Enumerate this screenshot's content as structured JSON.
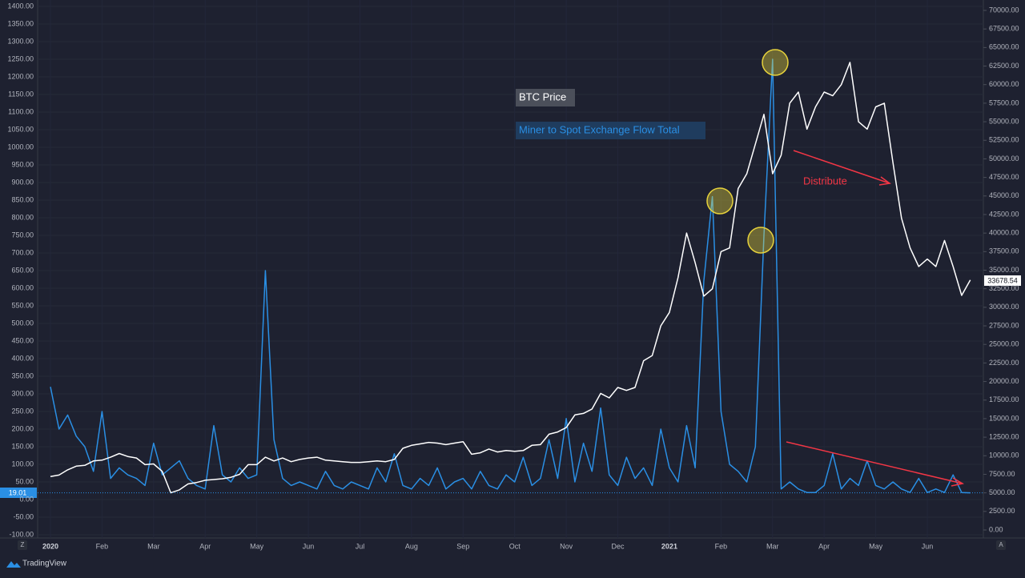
{
  "chart_data": {
    "type": "line",
    "categories": [
      "2020",
      null,
      null,
      null,
      null,
      null,
      "Feb",
      null,
      null,
      null,
      null,
      null,
      "Mar",
      null,
      null,
      null,
      null,
      null,
      "Apr",
      null,
      null,
      null,
      null,
      null,
      "May",
      null,
      null,
      null,
      null,
      null,
      "Jun",
      null,
      null,
      null,
      null,
      null,
      "Jul",
      null,
      null,
      null,
      null,
      null,
      "Aug",
      null,
      null,
      null,
      null,
      null,
      "Sep",
      null,
      null,
      null,
      null,
      null,
      "Oct",
      null,
      null,
      null,
      null,
      null,
      "Nov",
      null,
      null,
      null,
      null,
      null,
      "Dec",
      null,
      null,
      null,
      null,
      null,
      "2021",
      null,
      null,
      null,
      null,
      null,
      "Feb",
      null,
      null,
      null,
      null,
      null,
      "Mar",
      null,
      null,
      null,
      null,
      null,
      "Apr",
      null,
      null,
      null,
      null,
      null,
      "May",
      null,
      null,
      null,
      null,
      null,
      "Jun",
      null,
      null,
      null,
      null,
      null
    ],
    "series": [
      {
        "name": "Miner to Spot Exchange Flow Total",
        "color": "#2a8fe4",
        "axis": "y",
        "values": [
          320,
          200,
          240,
          180,
          150,
          80,
          250,
          60,
          90,
          70,
          60,
          40,
          160,
          70,
          90,
          110,
          60,
          40,
          30,
          210,
          70,
          50,
          90,
          60,
          70,
          650,
          170,
          60,
          40,
          50,
          40,
          30,
          80,
          40,
          30,
          50,
          40,
          30,
          90,
          50,
          130,
          40,
          30,
          60,
          40,
          90,
          30,
          50,
          60,
          30,
          80,
          40,
          30,
          70,
          50,
          120,
          40,
          60,
          170,
          60,
          230,
          50,
          160,
          80,
          260,
          70,
          40,
          120,
          60,
          90,
          40,
          200,
          90,
          50,
          210,
          90,
          620,
          860,
          250,
          100,
          80,
          50,
          150,
          750,
          1250,
          30,
          50,
          30,
          20,
          20,
          40,
          130,
          30,
          60,
          40,
          110,
          40,
          30,
          50,
          30,
          20,
          60,
          20,
          30,
          20,
          70,
          20,
          19.01
        ]
      },
      {
        "name": "BTC Price",
        "color": "#ffffff",
        "axis": "y2",
        "values": [
          7200,
          7400,
          8100,
          8600,
          8700,
          9300,
          9400,
          9800,
          10300,
          9900,
          9700,
          8800,
          8900,
          7900,
          5000,
          5400,
          6200,
          6400,
          6700,
          6800,
          6900,
          7100,
          7500,
          8800,
          8800,
          9800,
          9300,
          9700,
          9200,
          9500,
          9700,
          9800,
          9400,
          9300,
          9200,
          9100,
          9100,
          9200,
          9300,
          9200,
          9500,
          11000,
          11400,
          11600,
          11800,
          11700,
          11500,
          11700,
          11900,
          10200,
          10400,
          10900,
          10500,
          10700,
          10600,
          10700,
          11400,
          11500,
          12900,
          13200,
          13800,
          15500,
          15700,
          16300,
          18400,
          17800,
          19200,
          18800,
          19200,
          22800,
          23500,
          27500,
          29300,
          34000,
          40000,
          36000,
          31500,
          32500,
          37500,
          38000,
          46000,
          48000,
          52000,
          56000,
          48000,
          50500,
          57500,
          59000,
          54000,
          57000,
          59000,
          58500,
          60000,
          63000,
          55000,
          54000,
          57000,
          57500,
          49500,
          42000,
          38000,
          35500,
          36500,
          35500,
          39000,
          35500,
          31600,
          33678.54
        ]
      }
    ],
    "ylim": [
      -100,
      1400
    ],
    "yticks": [
      {
        "value": -100,
        "label": "-100.00"
      },
      {
        "value": -50,
        "label": "-50.00"
      },
      {
        "value": 0,
        "label": "0.00"
      },
      {
        "value": 50,
        "label": "50.00"
      },
      {
        "value": 100,
        "label": "100.00"
      },
      {
        "value": 150,
        "label": "150.00"
      },
      {
        "value": 200,
        "label": "200.00"
      },
      {
        "value": 250,
        "label": "250.00"
      },
      {
        "value": 300,
        "label": "300.00"
      },
      {
        "value": 350,
        "label": "350.00"
      },
      {
        "value": 400,
        "label": "400.00"
      },
      {
        "value": 450,
        "label": "450.00"
      },
      {
        "value": 500,
        "label": "500.00"
      },
      {
        "value": 550,
        "label": "550.00"
      },
      {
        "value": 600,
        "label": "600.00"
      },
      {
        "value": 650,
        "label": "650.00"
      },
      {
        "value": 700,
        "label": "700.00"
      },
      {
        "value": 750,
        "label": "750.00"
      },
      {
        "value": 800,
        "label": "800.00"
      },
      {
        "value": 850,
        "label": "850.00"
      },
      {
        "value": 900,
        "label": "900.00"
      },
      {
        "value": 950,
        "label": "950.00"
      },
      {
        "value": 1000,
        "label": "1000.00"
      },
      {
        "value": 1050,
        "label": "1050.00"
      },
      {
        "value": 1100,
        "label": "1100.00"
      },
      {
        "value": 1150,
        "label": "1150.00"
      },
      {
        "value": 1200,
        "label": "1200.00"
      },
      {
        "value": 1250,
        "label": "1250.00"
      },
      {
        "value": 1300,
        "label": "1300.00"
      },
      {
        "value": 1350,
        "label": "1350.00"
      },
      {
        "value": 1400,
        "label": "1400.00"
      }
    ],
    "y2lim": [
      0,
      70000
    ],
    "y2ticks": [
      {
        "value": 0,
        "label": "0.00"
      },
      {
        "value": 2500,
        "label": "2500.00"
      },
      {
        "value": 5000,
        "label": "5000.00"
      },
      {
        "value": 7500,
        "label": "7500.00"
      },
      {
        "value": 10000,
        "label": "10000.00"
      },
      {
        "value": 12500,
        "label": "12500.00"
      },
      {
        "value": 15000,
        "label": "15000.00"
      },
      {
        "value": 17500,
        "label": "17500.00"
      },
      {
        "value": 20000,
        "label": "20000.00"
      },
      {
        "value": 22500,
        "label": "22500.00"
      },
      {
        "value": 25000,
        "label": "25000.00"
      },
      {
        "value": 27500,
        "label": "27500.00"
      },
      {
        "value": 30000,
        "label": "30000.00"
      },
      {
        "value": 32500,
        "label": "32500.00"
      },
      {
        "value": 35000,
        "label": "35000.00"
      },
      {
        "value": 37500,
        "label": "37500.00"
      },
      {
        "value": 40000,
        "label": "40000.00"
      },
      {
        "value": 42500,
        "label": "42500.00"
      },
      {
        "value": 45000,
        "label": "45000.00"
      },
      {
        "value": 47500,
        "label": "47500.00"
      },
      {
        "value": 50000,
        "label": "50000.00"
      },
      {
        "value": 52500,
        "label": "52500.00"
      },
      {
        "value": 55000,
        "label": "55000.00"
      },
      {
        "value": 57500,
        "label": "57500.00"
      },
      {
        "value": 60000,
        "label": "60000.00"
      },
      {
        "value": 62500,
        "label": "62500.00"
      },
      {
        "value": 65000,
        "label": "65000.00"
      },
      {
        "value": 67500,
        "label": "67500.00"
      },
      {
        "value": 70000,
        "label": "70000.00"
      }
    ],
    "grid": true,
    "annotations": [
      "Distribute"
    ],
    "watermark": "TradingView",
    "buttons": [
      "Z",
      "A"
    ]
  }
}
